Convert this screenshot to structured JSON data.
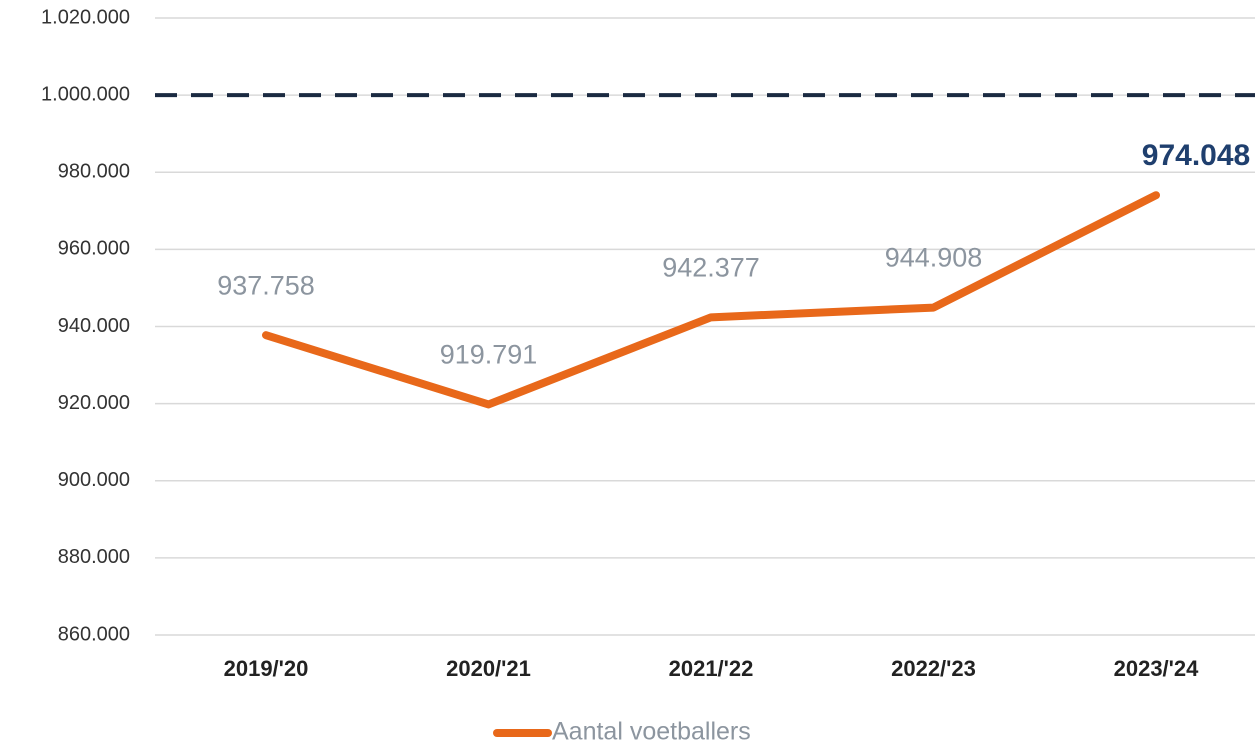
{
  "chart_data": {
    "type": "line",
    "categories": [
      "2019/'20",
      "2020/'21",
      "2021/'22",
      "2022/'23",
      "2023/'24"
    ],
    "series": [
      {
        "name": "Aantal voetballers",
        "color": "#e8681a",
        "values": [
          937758,
          919791,
          942377,
          944908,
          974048
        ],
        "value_labels": [
          "937.758",
          "919.791",
          "942.377",
          "944.908",
          "974.048"
        ],
        "value_label_colors": [
          "#8c959f",
          "#8c959f",
          "#8c959f",
          "#8c959f",
          "#1f3f6e"
        ]
      }
    ],
    "ylim": [
      860000,
      1020000
    ],
    "yticks": [
      {
        "value": 860000,
        "label": "860.000"
      },
      {
        "value": 880000,
        "label": "880.000"
      },
      {
        "value": 900000,
        "label": "900.000"
      },
      {
        "value": 920000,
        "label": "920.000"
      },
      {
        "value": 940000,
        "label": "940.000"
      },
      {
        "value": 960000,
        "label": "960.000"
      },
      {
        "value": 980000,
        "label": "980.000"
      },
      {
        "value": 1000000,
        "label": "1.000.000"
      },
      {
        "value": 1020000,
        "label": "1.020.000"
      }
    ],
    "reference_line": {
      "value": 1000000,
      "color": "#1b2a41"
    },
    "grid": true,
    "legend": "bottom"
  }
}
